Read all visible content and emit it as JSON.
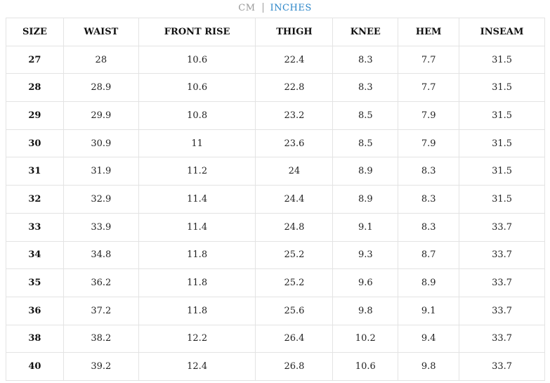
{
  "unit_toggle": {
    "options": [
      "CM",
      "INCHES"
    ],
    "selected": "INCHES"
  },
  "table": {
    "columns": [
      "SIZE",
      "WAIST",
      "FRONT RISE",
      "THIGH",
      "KNEE",
      "HEM",
      "INSEAM"
    ],
    "rows": [
      [
        "27",
        "28",
        "10.6",
        "22.4",
        "8.3",
        "7.7",
        "31.5"
      ],
      [
        "28",
        "28.9",
        "10.6",
        "22.8",
        "8.3",
        "7.7",
        "31.5"
      ],
      [
        "29",
        "29.9",
        "10.8",
        "23.2",
        "8.5",
        "7.9",
        "31.5"
      ],
      [
        "30",
        "30.9",
        "11",
        "23.6",
        "8.5",
        "7.9",
        "31.5"
      ],
      [
        "31",
        "31.9",
        "11.2",
        "24",
        "8.9",
        "8.3",
        "31.5"
      ],
      [
        "32",
        "32.9",
        "11.4",
        "24.4",
        "8.9",
        "8.3",
        "31.5"
      ],
      [
        "33",
        "33.9",
        "11.4",
        "24.8",
        "9.1",
        "8.3",
        "33.7"
      ],
      [
        "34",
        "34.8",
        "11.8",
        "25.2",
        "9.3",
        "8.7",
        "33.7"
      ],
      [
        "35",
        "36.2",
        "11.8",
        "25.2",
        "9.6",
        "8.9",
        "33.7"
      ],
      [
        "36",
        "37.2",
        "11.8",
        "25.6",
        "9.8",
        "9.1",
        "33.7"
      ],
      [
        "38",
        "38.2",
        "12.2",
        "26.4",
        "10.2",
        "9.4",
        "33.7"
      ],
      [
        "40",
        "39.2",
        "12.4",
        "26.8",
        "10.6",
        "9.8",
        "33.7"
      ]
    ]
  }
}
